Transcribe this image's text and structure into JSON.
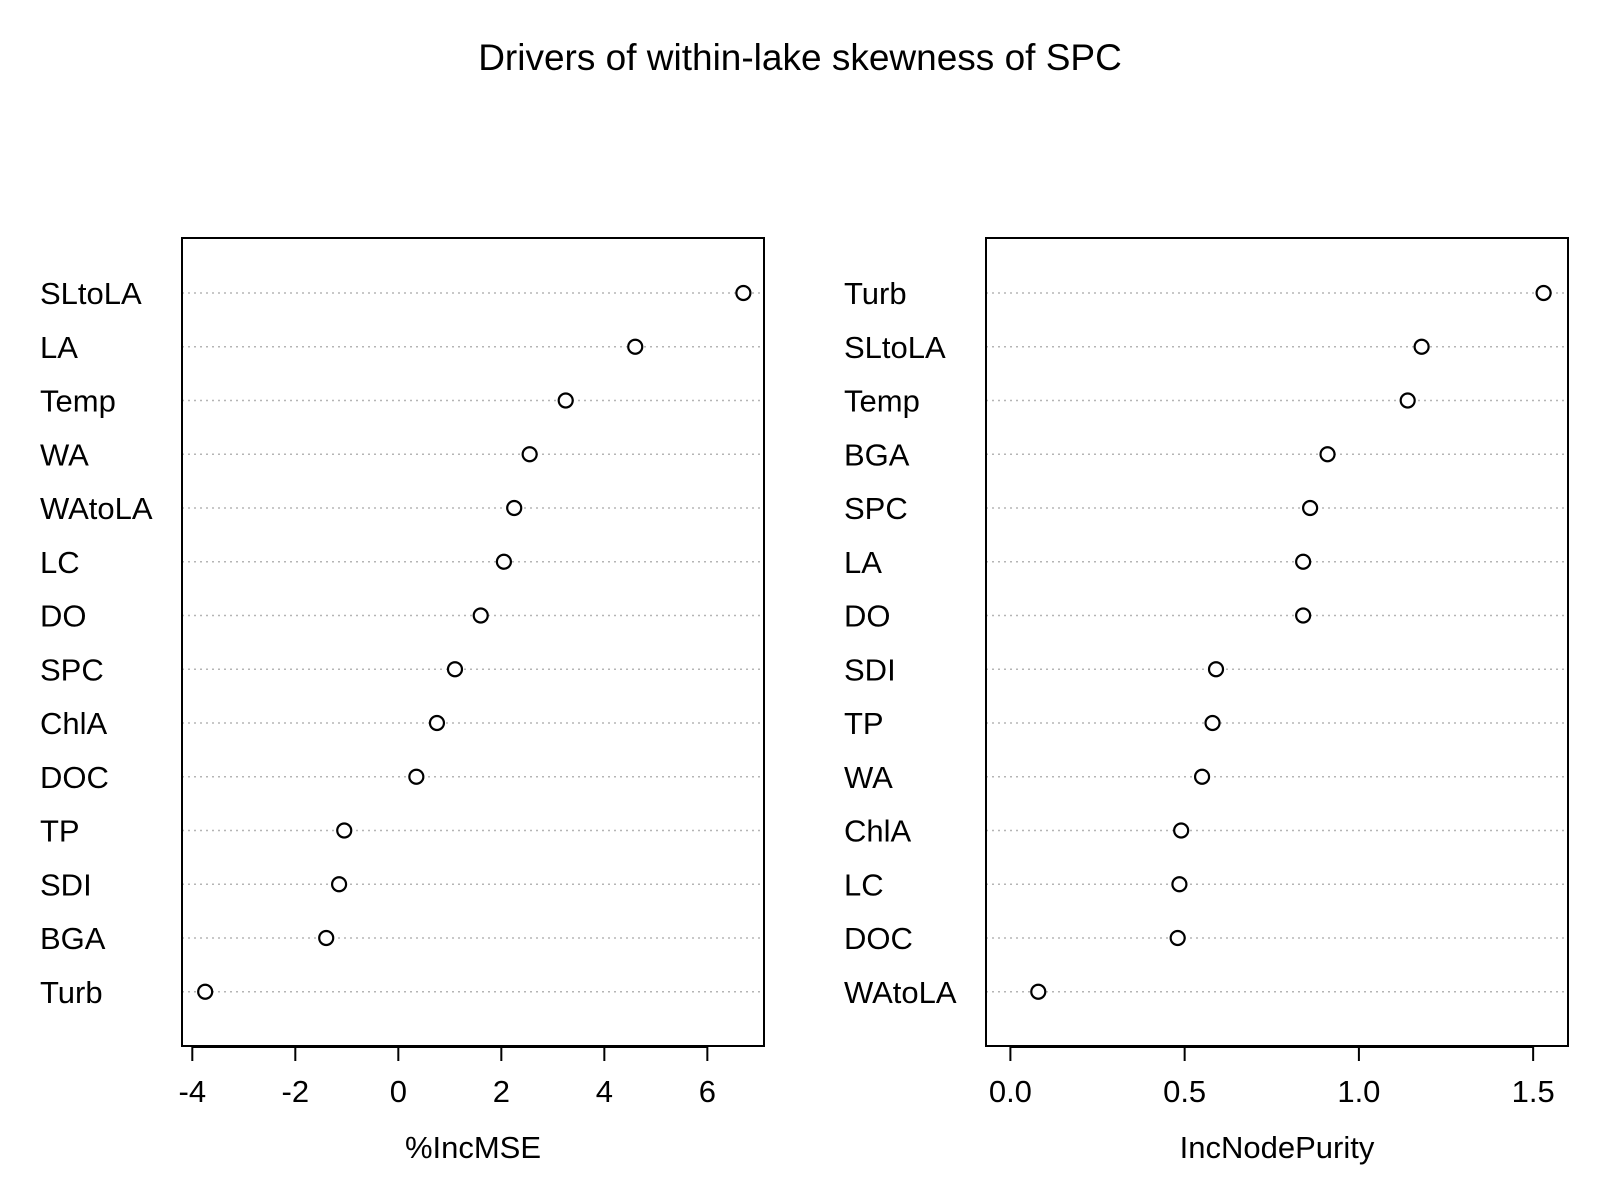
{
  "title": "Drivers of within-lake skewness of SPC",
  "chart_data": [
    {
      "type": "scatter",
      "xlabel": "%IncMSE",
      "xlim": [
        -4.2,
        7.1
      ],
      "xticks": [
        -4,
        -2,
        0,
        2,
        4,
        6
      ],
      "xtick_labels": [
        "-4",
        "-2",
        "0",
        "2",
        "4",
        "6"
      ],
      "grid": "dotted horizontal guide lines",
      "categories": [
        "SLtoLA",
        "LA",
        "Temp",
        "WA",
        "WAtoLA",
        "LC",
        "DO",
        "SPC",
        "ChlA",
        "DOC",
        "TP",
        "SDI",
        "BGA",
        "Turb"
      ],
      "values": [
        6.7,
        4.6,
        3.25,
        2.55,
        2.25,
        2.05,
        1.6,
        1.1,
        0.75,
        0.35,
        -1.05,
        -1.15,
        -1.4,
        -3.75
      ]
    },
    {
      "type": "scatter",
      "xlabel": "IncNodePurity",
      "xlim": [
        -0.07,
        1.6
      ],
      "xticks": [
        0.0,
        0.5,
        1.0,
        1.5
      ],
      "xtick_labels": [
        "0.0",
        "0.5",
        "1.0",
        "1.5"
      ],
      "grid": "dotted horizontal guide lines",
      "categories": [
        "Turb",
        "SLtoLA",
        "Temp",
        "BGA",
        "SPC",
        "LA",
        "DO",
        "SDI",
        "TP",
        "WA",
        "ChlA",
        "LC",
        "DOC",
        "WAtoLA"
      ],
      "values": [
        1.53,
        1.18,
        1.14,
        0.91,
        0.86,
        0.84,
        0.84,
        0.59,
        0.58,
        0.55,
        0.49,
        0.485,
        0.48,
        0.08
      ]
    }
  ]
}
